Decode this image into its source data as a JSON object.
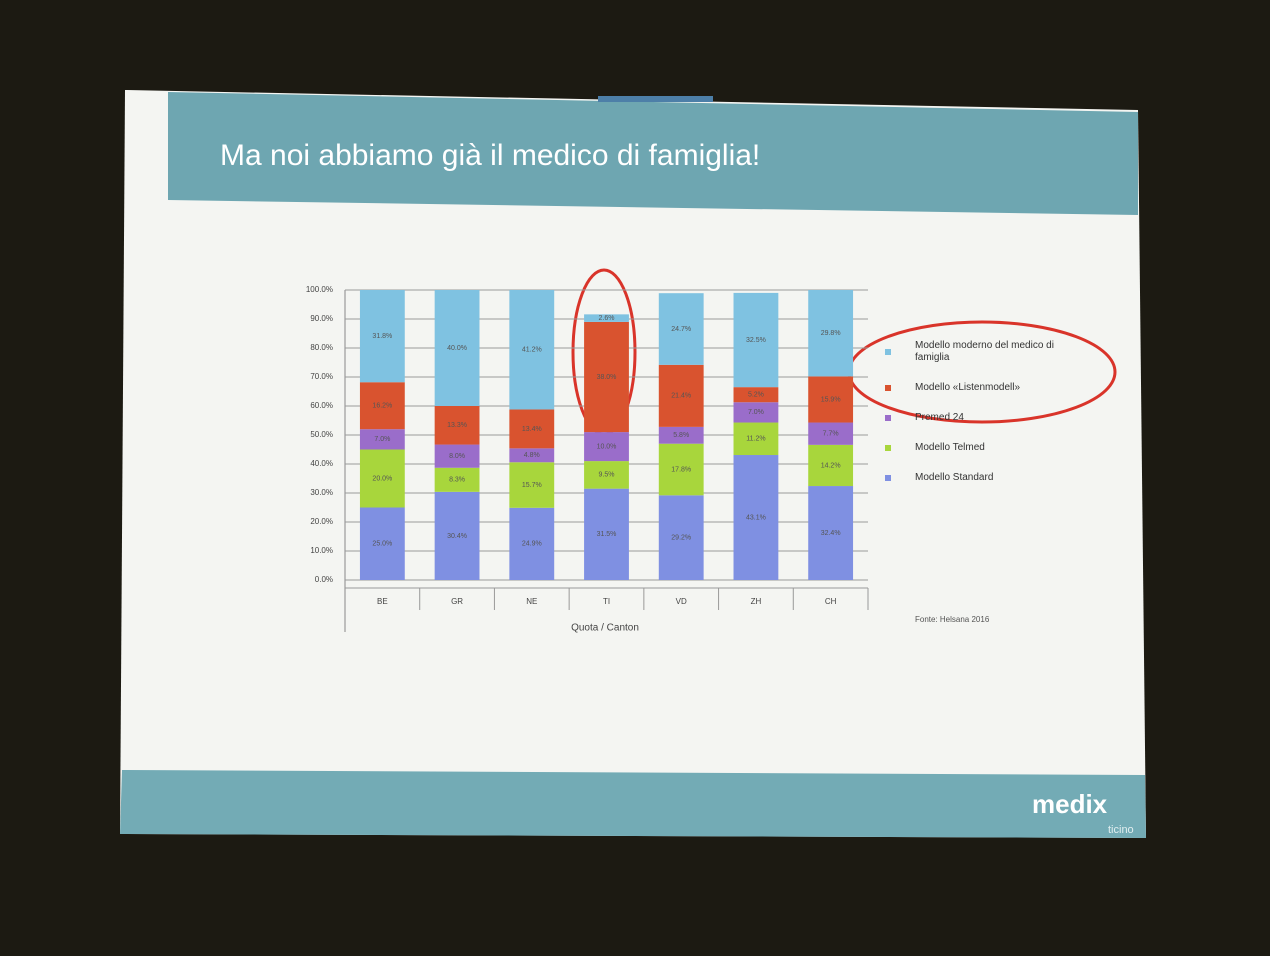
{
  "slide_title": "Ma noi abbiamo già il medico di famiglia!",
  "source": "Fonte: Helsana 2016",
  "logo": {
    "name": "medix",
    "subtitle": "ticino"
  },
  "chart_data": {
    "type": "stacked_bar",
    "xlabel": "Quota / Canton",
    "categories": [
      "BE",
      "GR",
      "NE",
      "TI",
      "VD",
      "ZH",
      "CH"
    ],
    "ylim": [
      0,
      100
    ],
    "yticks": [
      {
        "value": 0,
        "label": "0.0%"
      },
      {
        "value": 10,
        "label": "10.0%"
      },
      {
        "value": 20,
        "label": "20.0%"
      },
      {
        "value": 30,
        "label": "30.0%"
      },
      {
        "value": 40,
        "label": "40.0%"
      },
      {
        "value": 50,
        "label": "50.0%"
      },
      {
        "value": 60,
        "label": "60.0%"
      },
      {
        "value": 70,
        "label": "70.0%"
      },
      {
        "value": 80,
        "label": "80.0%"
      },
      {
        "value": 90,
        "label": "90.0%"
      },
      {
        "value": 100,
        "label": "100.0%"
      }
    ],
    "grid": true,
    "series": [
      {
        "name": "Modello Standard",
        "color": "#7f90e2",
        "values": [
          25.0,
          30.4,
          24.9,
          31.5,
          29.2,
          43.1,
          32.4
        ],
        "value_labels": [
          "25.0%",
          "30.4%",
          "24.9%",
          "31.5%",
          "29.2%",
          "43.1%",
          "32.4%"
        ]
      },
      {
        "name": "Modello Telmed",
        "color": "#a8d63c",
        "values": [
          20.0,
          8.3,
          15.7,
          9.5,
          17.8,
          11.2,
          14.2
        ],
        "value_labels": [
          "20.0%",
          "8.3%",
          "15.7%",
          "9.5%",
          "17.8%",
          "11.2%",
          "14.2%"
        ]
      },
      {
        "name": "Premed 24",
        "color": "#9a6dca",
        "values": [
          7.0,
          8.0,
          4.8,
          10.0,
          5.8,
          7.0,
          7.7
        ],
        "value_labels": [
          "7.0%",
          "8.0%",
          "4.8%",
          "10.0%",
          "5.8%",
          "7.0%",
          "7.7%"
        ]
      },
      {
        "name": "Modello «Listenmodell»",
        "color": "#d9532f",
        "values": [
          16.2,
          13.3,
          13.4,
          38.0,
          21.4,
          5.2,
          15.9
        ],
        "value_labels": [
          "16.2%",
          "13.3%",
          "13.4%",
          "38.0%",
          "21.4%",
          "5.2%",
          "15.9%"
        ]
      },
      {
        "name": "Modello moderno del medico di famiglia",
        "color": "#7fc2e1",
        "values": [
          31.8,
          40.0,
          41.2,
          2.6,
          24.7,
          32.5,
          29.8
        ],
        "value_labels": [
          "31.8%",
          "40.0%",
          "41.2%",
          "2.6%",
          "24.7%",
          "32.5%",
          "29.8%"
        ]
      }
    ]
  }
}
